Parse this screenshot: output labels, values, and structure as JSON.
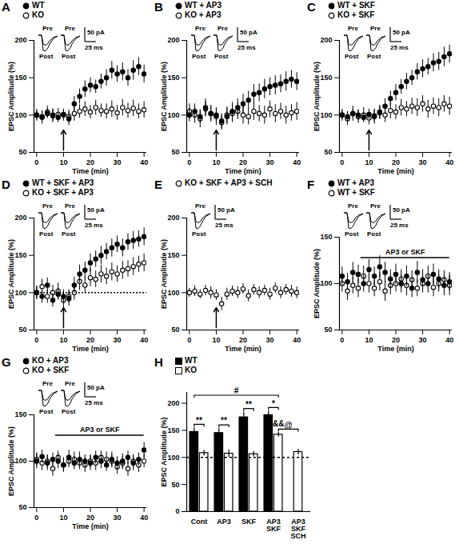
{
  "chart_data": [
    {
      "title": "A",
      "type": "scatter",
      "x_label": "Time (min)",
      "y_label": "EPSC Amplitude (%)",
      "xlim": [
        -1,
        41
      ],
      "xticks": [
        0,
        10,
        20,
        30,
        40
      ],
      "ylim": [
        50,
        200
      ],
      "yticks": [
        50,
        100,
        150,
        200
      ],
      "arrow_at": 10,
      "inset_labels": [
        "Pre",
        "Post",
        "Pre",
        "Post"
      ],
      "scale_bar": [
        "50 pA",
        "25 ms"
      ],
      "x": [
        0,
        2,
        4,
        6,
        8,
        10,
        12,
        14,
        16,
        18,
        20,
        22,
        24,
        26,
        28,
        30,
        32,
        34,
        36,
        38,
        40
      ],
      "series": [
        {
          "name": "WT",
          "color": "#000000",
          "marker": "filled circle",
          "values": [
            100,
            98,
            102,
            100,
            97,
            101,
            95,
            115,
            125,
            135,
            140,
            138,
            145,
            150,
            160,
            155,
            158,
            150,
            160,
            165,
            155
          ],
          "errors": [
            6,
            7,
            6,
            8,
            7,
            6,
            9,
            10,
            10,
            11,
            10,
            9,
            10,
            11,
            12,
            11,
            12,
            11,
            13,
            12,
            12
          ]
        },
        {
          "name": "KO",
          "color": "#000000",
          "marker": "open circle",
          "values": [
            100,
            97,
            104,
            99,
            101,
            100,
            98,
            102,
            105,
            108,
            104,
            110,
            106,
            105,
            108,
            103,
            110,
            106,
            109,
            105,
            107
          ],
          "errors": [
            8,
            9,
            8,
            9,
            8,
            8,
            9,
            10,
            9,
            10,
            9,
            10,
            9,
            10,
            11,
            10,
            11,
            10,
            11,
            10,
            11
          ]
        }
      ]
    },
    {
      "title": "B",
      "type": "scatter",
      "x_label": "Time (min)",
      "y_label": "EPSC Amplitude (%)",
      "xlim": [
        -1,
        41
      ],
      "xticks": [
        0,
        10,
        20,
        30,
        40
      ],
      "ylim": [
        50,
        200
      ],
      "yticks": [
        50,
        100,
        150,
        200
      ],
      "arrow_at": 10,
      "inset_labels": [
        "Pre",
        "Post",
        "Pre",
        "Post"
      ],
      "scale_bar": [
        "50 pA",
        "25 ms"
      ],
      "x": [
        0,
        2,
        4,
        6,
        8,
        10,
        12,
        14,
        16,
        18,
        20,
        22,
        24,
        26,
        28,
        30,
        32,
        34,
        36,
        38,
        40
      ],
      "series": [
        {
          "name": "WT + AP3",
          "color": "#000000",
          "marker": "filled circle",
          "values": [
            100,
            105,
            98,
            110,
            102,
            100,
            92,
            98,
            105,
            110,
            115,
            120,
            128,
            130,
            135,
            138,
            140,
            142,
            145,
            148,
            145
          ],
          "errors": [
            9,
            10,
            9,
            12,
            10,
            9,
            10,
            11,
            12,
            12,
            13,
            12,
            13,
            12,
            13,
            12,
            13,
            12,
            13,
            12,
            12
          ]
        },
        {
          "name": "KO + AP3",
          "color": "#000000",
          "marker": "open circle",
          "values": [
            105,
            100,
            95,
            108,
            102,
            98,
            90,
            100,
            102,
            105,
            100,
            98,
            105,
            102,
            100,
            108,
            102,
            105,
            100,
            103,
            105
          ],
          "errors": [
            10,
            11,
            12,
            10,
            11,
            12,
            10,
            11,
            12,
            11,
            12,
            11,
            12,
            11,
            12,
            11,
            12,
            11,
            12,
            11,
            12
          ]
        }
      ]
    },
    {
      "title": "C",
      "type": "scatter",
      "x_label": "Time (min)",
      "y_label": "EPSC Amplitude (%)",
      "xlim": [
        -1,
        41
      ],
      "xticks": [
        0,
        10,
        20,
        30,
        40
      ],
      "ylim": [
        50,
        200
      ],
      "yticks": [
        50,
        100,
        150,
        200
      ],
      "arrow_at": 10,
      "inset_labels": [
        "Pre",
        "Post",
        "Pre",
        "Post"
      ],
      "scale_bar": [
        "50 pA",
        "25 ms"
      ],
      "x": [
        0,
        2,
        4,
        6,
        8,
        10,
        12,
        14,
        16,
        18,
        20,
        22,
        24,
        26,
        28,
        30,
        32,
        34,
        36,
        38,
        40
      ],
      "series": [
        {
          "name": "WT + SKF",
          "color": "#000000",
          "marker": "filled circle",
          "values": [
            100,
            98,
            102,
            100,
            97,
            101,
            99,
            104,
            112,
            122,
            130,
            138,
            145,
            150,
            158,
            162,
            165,
            170,
            172,
            178,
            182
          ],
          "errors": [
            6,
            7,
            6,
            7,
            6,
            7,
            8,
            9,
            10,
            10,
            11,
            10,
            11,
            10,
            11,
            12,
            11,
            12,
            12,
            13,
            12
          ]
        },
        {
          "name": "KO + SKF",
          "color": "#000000",
          "marker": "open circle",
          "values": [
            100,
            95,
            102,
            98,
            100,
            96,
            98,
            103,
            100,
            106,
            104,
            110,
            108,
            112,
            110,
            115,
            108,
            112,
            110,
            115,
            112
          ],
          "errors": [
            8,
            9,
            10,
            9,
            10,
            9,
            10,
            9,
            10,
            11,
            10,
            11,
            10,
            11,
            12,
            11,
            12,
            11,
            12,
            11,
            12
          ]
        }
      ]
    },
    {
      "title": "D",
      "type": "scatter",
      "x_label": "Time (min)",
      "y_label": "EPSC Amplitude (%)",
      "xlim": [
        -1,
        41
      ],
      "xticks": [
        0,
        10,
        20,
        30,
        40
      ],
      "ylim": [
        50,
        200
      ],
      "yticks": [
        50,
        100,
        150,
        200
      ],
      "arrow_at": 10,
      "reference_line": 100,
      "inset_labels": [
        "Pre",
        "Post",
        "Pre",
        "Post"
      ],
      "scale_bar": [
        "50 pA",
        "25 ms"
      ],
      "x": [
        0,
        2,
        4,
        6,
        8,
        10,
        12,
        14,
        16,
        18,
        20,
        22,
        24,
        26,
        28,
        30,
        32,
        34,
        36,
        38,
        40
      ],
      "series": [
        {
          "name": "WT + SKF + AP3",
          "color": "#000000",
          "marker": "filled circle",
          "values": [
            100,
            95,
            110,
            90,
            98,
            95,
            92,
            110,
            125,
            130,
            140,
            145,
            150,
            155,
            160,
            165,
            160,
            168,
            170,
            172,
            175
          ],
          "errors": [
            8,
            9,
            10,
            9,
            8,
            9,
            10,
            11,
            12,
            11,
            12,
            11,
            12,
            11,
            12,
            11,
            12,
            11,
            12,
            11,
            12
          ]
        },
        {
          "name": "KO + SKF + AP3",
          "color": "#000000",
          "marker": "open circle",
          "values": [
            100,
            108,
            95,
            100,
            102,
            90,
            95,
            100,
            115,
            110,
            120,
            118,
            125,
            122,
            128,
            125,
            130,
            132,
            135,
            138,
            140
          ],
          "errors": [
            9,
            10,
            9,
            10,
            11,
            10,
            9,
            10,
            12,
            11,
            12,
            11,
            12,
            11,
            12,
            11,
            12,
            11,
            12,
            11,
            12
          ]
        }
      ]
    },
    {
      "title": "E",
      "type": "scatter",
      "x_label": "Time (min)",
      "y_label": "EPSC Amplitude (%)",
      "xlim": [
        -1,
        41
      ],
      "xticks": [
        0,
        10,
        20,
        30,
        40
      ],
      "ylim": [
        50,
        200
      ],
      "yticks": [
        50,
        100,
        150,
        200
      ],
      "arrow_at": 10,
      "inset_labels": [
        "Pre",
        "Post"
      ],
      "scale_bar": [
        "50 pA",
        "25 ms"
      ],
      "x": [
        0,
        2,
        4,
        6,
        8,
        10,
        12,
        14,
        16,
        18,
        20,
        22,
        24,
        26,
        28,
        30,
        32,
        34,
        36,
        38,
        40
      ],
      "series": [
        {
          "name": "KO + SKF + AP3 + SCH",
          "color": "#000000",
          "marker": "open circle",
          "values": [
            100,
            102,
            98,
            103,
            100,
            97,
            85,
            98,
            102,
            100,
            105,
            96,
            104,
            100,
            103,
            98,
            106,
            100,
            104,
            102,
            100
          ],
          "errors": [
            6,
            7,
            6,
            7,
            8,
            7,
            9,
            8,
            7,
            8,
            7,
            8,
            7,
            8,
            7,
            8,
            7,
            8,
            7,
            8,
            8
          ]
        }
      ]
    },
    {
      "title": "F",
      "type": "scatter",
      "x_label": "Time (min)",
      "y_label": "EPSC Amplitude (%)",
      "xlim": [
        -1,
        41
      ],
      "xticks": [
        0,
        10,
        20,
        30,
        40
      ],
      "ylim": [
        50,
        150
      ],
      "yticks": [
        50,
        100,
        150
      ],
      "drug_period": [
        7,
        40
      ],
      "drug_label": "AP3 or SKF",
      "inset_labels": [
        "Pre",
        "Post",
        "Pre",
        "Post"
      ],
      "scale_bar": [
        "50 pA",
        "25 ms"
      ],
      "x": [
        0,
        2,
        4,
        6,
        8,
        10,
        12,
        14,
        16,
        18,
        20,
        22,
        24,
        26,
        28,
        30,
        32,
        34,
        36,
        38,
        40
      ],
      "series": [
        {
          "name": "WT + AP3",
          "color": "#000000",
          "marker": "filled circle",
          "values": [
            108,
            102,
            112,
            110,
            100,
            115,
            108,
            118,
            112,
            105,
            110,
            100,
            108,
            95,
            112,
            104,
            100,
            110,
            105,
            98,
            102
          ],
          "errors": [
            10,
            9,
            11,
            10,
            9,
            11,
            10,
            12,
            11,
            10,
            11,
            10,
            11,
            10,
            12,
            11,
            10,
            11,
            10,
            11,
            10
          ]
        },
        {
          "name": "WT + SKF",
          "color": "#000000",
          "marker": "open circle",
          "values": [
            100,
            92,
            98,
            95,
            108,
            100,
            95,
            102,
            92,
            98,
            100,
            105,
            98,
            104,
            95,
            100,
            108,
            96,
            100,
            104,
            98
          ],
          "errors": [
            9,
            10,
            9,
            10,
            11,
            10,
            9,
            10,
            11,
            10,
            9,
            10,
            11,
            10,
            9,
            10,
            11,
            10,
            9,
            10,
            11
          ]
        }
      ]
    },
    {
      "title": "G",
      "type": "scatter",
      "x_label": "Time (min)",
      "y_label": "EPSC Amplitude (%)",
      "xlim": [
        -1,
        41
      ],
      "xticks": [
        0,
        10,
        20,
        30,
        40
      ],
      "ylim": [
        50,
        150
      ],
      "yticks": [
        50,
        100,
        150
      ],
      "drug_period": [
        7,
        40
      ],
      "drug_label": "AP3 or SKF",
      "inset_labels": [
        "Pre",
        "Post",
        "Pre",
        "Post"
      ],
      "scale_bar": [
        "50 pA",
        "25 ms"
      ],
      "x": [
        0,
        2,
        4,
        6,
        8,
        10,
        12,
        14,
        16,
        18,
        20,
        22,
        24,
        26,
        28,
        30,
        32,
        34,
        36,
        38,
        40
      ],
      "series": [
        {
          "name": "KO + AP3",
          "color": "#000000",
          "marker": "filled circle",
          "values": [
            100,
            105,
            98,
            102,
            100,
            96,
            104,
            98,
            102,
            100,
            98,
            104,
            100,
            96,
            102,
            98,
            100,
            104,
            98,
            102,
            112
          ],
          "errors": [
            8,
            7,
            8,
            7,
            8,
            7,
            8,
            7,
            8,
            7,
            8,
            7,
            8,
            7,
            8,
            7,
            8,
            7,
            8,
            7,
            8
          ]
        },
        {
          "name": "KO + SKF",
          "color": "#000000",
          "marker": "open circle",
          "values": [
            102,
            98,
            100,
            92,
            104,
            96,
            100,
            102,
            98,
            96,
            100,
            98,
            104,
            102,
            100,
            94,
            98,
            92,
            100,
            96,
            100
          ],
          "errors": [
            7,
            8,
            7,
            8,
            7,
            8,
            7,
            8,
            7,
            8,
            7,
            8,
            7,
            8,
            7,
            8,
            7,
            8,
            7,
            8,
            7
          ]
        }
      ]
    },
    {
      "title": "H",
      "type": "bar",
      "y_label": "EPSC Amplitude (%)",
      "ylim": [
        0,
        220
      ],
      "yticks": [
        0,
        50,
        100,
        150,
        200
      ],
      "reference_line": 100,
      "categories": [
        "Cont",
        "AP3",
        "SKF",
        "AP3\nSKF",
        "AP3\nSKF\nSCH"
      ],
      "series": [
        {
          "name": "WT",
          "color": "#000000",
          "values": [
            147,
            145,
            174,
            178,
            null
          ],
          "errors": [
            8,
            9,
            10,
            8,
            null
          ]
        },
        {
          "name": "KO",
          "color": "#ffffff",
          "values": [
            108,
            107,
            106,
            142,
            110
          ],
          "errors": [
            5,
            7,
            5,
            4,
            5
          ]
        }
      ],
      "annotations": [
        {
          "text": "**",
          "from": [
            "Cont",
            "WT"
          ],
          "to": [
            "Cont",
            "KO"
          ]
        },
        {
          "text": "**",
          "from": [
            "AP3",
            "WT"
          ],
          "to": [
            "AP3",
            "KO"
          ]
        },
        {
          "text": "**",
          "from": [
            "SKF",
            "WT"
          ],
          "to": [
            "SKF",
            "KO"
          ]
        },
        {
          "text": "*",
          "from": [
            "AP3\nSKF",
            "WT"
          ],
          "to": [
            "AP3\nSKF",
            "KO"
          ]
        },
        {
          "text": "@",
          "from": [
            "AP3\nSKF",
            "KO"
          ],
          "to": [
            "AP3\nSKF\nSCH",
            "KO"
          ]
        },
        {
          "text": "#",
          "from": [
            "Cont",
            "WT"
          ],
          "to": [
            "AP3\nSKF",
            "KO"
          ]
        },
        {
          "text": "&&",
          "at": [
            "AP3\nSKF",
            "KO"
          ]
        }
      ]
    }
  ]
}
